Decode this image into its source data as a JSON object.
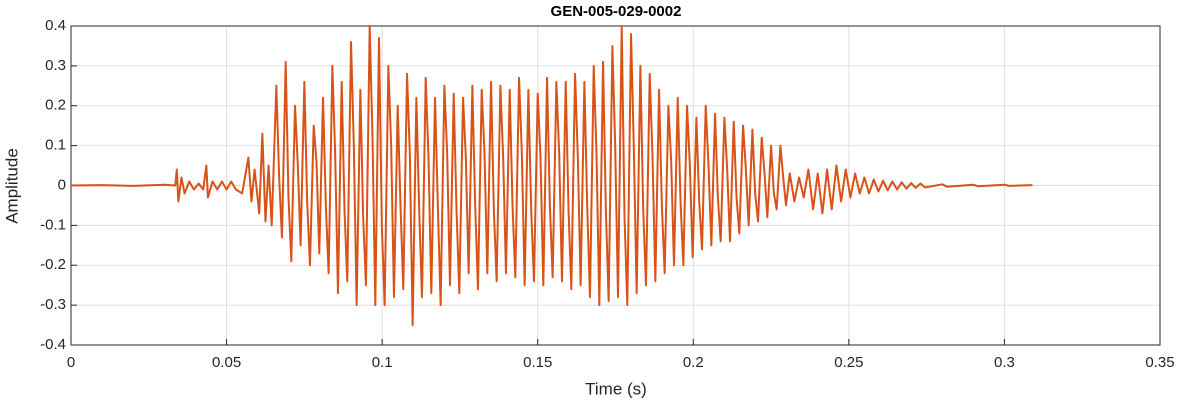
{
  "chart_data": {
    "type": "line",
    "title": "GEN-005-029-0002",
    "x_label": "Time (s)",
    "y_label": "Amplitude",
    "color": "#d95319",
    "grid": true,
    "xlim": [
      0,
      0.35
    ],
    "xticks": [
      0,
      0.05,
      0.1,
      0.15,
      0.2,
      0.25,
      0.3,
      0.35
    ],
    "ylim": [
      -0.4,
      0.4
    ],
    "yticks": [
      -0.4,
      -0.3,
      -0.2,
      -0.1,
      0,
      0.1,
      0.2,
      0.3,
      0.4
    ],
    "x": [
      0,
      0.01,
      0.02,
      0.03,
      0.0335,
      0.034,
      0.0345,
      0.0355,
      0.0365,
      0.038,
      0.0395,
      0.041,
      0.0425,
      0.0435,
      0.044,
      0.0455,
      0.047,
      0.0485,
      0.05,
      0.0515,
      0.053,
      0.055,
      0.057,
      0.058,
      0.059,
      0.0605,
      0.0615,
      0.0625,
      0.0635,
      0.0645,
      0.066,
      0.0669,
      0.0678,
      0.069,
      0.0699,
      0.0708,
      0.072,
      0.0729,
      0.0738,
      0.075,
      0.0759,
      0.0768,
      0.078,
      0.0789,
      0.0798,
      0.081,
      0.0819,
      0.0828,
      0.084,
      0.0849,
      0.0858,
      0.087,
      0.0879,
      0.0888,
      0.09,
      0.0909,
      0.0918,
      0.093,
      0.0939,
      0.0948,
      0.096,
      0.0969,
      0.0978,
      0.099,
      0.0999,
      0.1008,
      0.102,
      0.1029,
      0.1038,
      0.105,
      0.1059,
      0.1068,
      0.108,
      0.1089,
      0.1098,
      0.111,
      0.1119,
      0.1128,
      0.114,
      0.1149,
      0.1158,
      0.117,
      0.1179,
      0.1188,
      0.12,
      0.1209,
      0.1218,
      0.123,
      0.1239,
      0.1248,
      0.126,
      0.1269,
      0.1278,
      0.129,
      0.1299,
      0.1308,
      0.132,
      0.1329,
      0.1338,
      0.135,
      0.1359,
      0.1368,
      0.138,
      0.1389,
      0.1398,
      0.141,
      0.1419,
      0.1428,
      0.144,
      0.1449,
      0.1458,
      0.147,
      0.1479,
      0.1488,
      0.15,
      0.1509,
      0.1518,
      0.153,
      0.1539,
      0.1548,
      0.156,
      0.1569,
      0.1578,
      0.159,
      0.1599,
      0.1608,
      0.162,
      0.1629,
      0.1638,
      0.165,
      0.1659,
      0.1668,
      0.168,
      0.1689,
      0.1698,
      0.171,
      0.1719,
      0.1728,
      0.174,
      0.1749,
      0.1758,
      0.177,
      0.1779,
      0.1788,
      0.18,
      0.1809,
      0.1818,
      0.183,
      0.1839,
      0.1848,
      0.186,
      0.1869,
      0.1878,
      0.189,
      0.1899,
      0.1908,
      0.192,
      0.1929,
      0.1938,
      0.195,
      0.1959,
      0.1968,
      0.198,
      0.1989,
      0.1998,
      0.201,
      0.2019,
      0.2028,
      0.204,
      0.2049,
      0.2058,
      0.207,
      0.2079,
      0.2088,
      0.21,
      0.2109,
      0.2118,
      0.213,
      0.2139,
      0.2148,
      0.216,
      0.2169,
      0.2178,
      0.219,
      0.2199,
      0.2208,
      0.222,
      0.2229,
      0.2238,
      0.225,
      0.2259,
      0.2268,
      0.228,
      0.2289,
      0.2298,
      0.231,
      0.2325,
      0.234,
      0.2355,
      0.237,
      0.2385,
      0.24,
      0.2415,
      0.243,
      0.2445,
      0.246,
      0.2475,
      0.249,
      0.2505,
      0.252,
      0.2535,
      0.255,
      0.2565,
      0.258,
      0.2595,
      0.261,
      0.2625,
      0.264,
      0.2655,
      0.267,
      0.2685,
      0.27,
      0.2715,
      0.273,
      0.2745,
      0.28,
      0.2815,
      0.29,
      0.2915,
      0.3,
      0.3015,
      0.309
    ],
    "values": [
      0,
      0.001,
      -0.001,
      0.002,
      0,
      0.04,
      -0.04,
      0.02,
      -0.02,
      0.01,
      -0.01,
      0.005,
      -0.01,
      0.05,
      -0.03,
      0.01,
      -0.01,
      0.01,
      -0.01,
      0.01,
      -0.01,
      -0.02,
      0.07,
      -0.04,
      0.04,
      -0.07,
      0.13,
      -0.09,
      0.05,
      -0.1,
      0.25,
      0.02,
      -0.13,
      0.31,
      -0.03,
      -0.19,
      0.2,
      0.05,
      -0.15,
      0.26,
      -0.04,
      -0.2,
      0.15,
      0.06,
      -0.17,
      0.22,
      -0.05,
      -0.22,
      0.3,
      0.08,
      -0.27,
      0.26,
      -0.06,
      -0.24,
      0.36,
      0.1,
      -0.3,
      0.24,
      -0.08,
      -0.25,
      0.4,
      0.12,
      -0.3,
      0.37,
      -0.1,
      -0.3,
      0.3,
      0.1,
      -0.28,
      0.2,
      -0.05,
      -0.26,
      0.28,
      0.08,
      -0.35,
      0.22,
      -0.06,
      -0.28,
      0.27,
      0.07,
      -0.27,
      0.22,
      -0.05,
      -0.3,
      0.25,
      0.08,
      -0.25,
      0.23,
      -0.06,
      -0.27,
      0.22,
      0.07,
      -0.22,
      0.25,
      -0.05,
      -0.26,
      0.24,
      0.08,
      -0.22,
      0.26,
      -0.06,
      -0.24,
      0.25,
      0.07,
      -0.22,
      0.24,
      -0.05,
      -0.23,
      0.27,
      0.08,
      -0.25,
      0.24,
      -0.06,
      -0.24,
      0.23,
      0.07,
      -0.25,
      0.27,
      -0.05,
      -0.23,
      0.26,
      0.08,
      -0.24,
      0.26,
      -0.06,
      -0.26,
      0.28,
      0.07,
      -0.25,
      0.26,
      -0.05,
      -0.28,
      0.3,
      0.08,
      -0.3,
      0.31,
      -0.06,
      -0.29,
      0.35,
      0.1,
      -0.28,
      0.4,
      -0.08,
      -0.3,
      0.38,
      0.09,
      -0.27,
      0.3,
      -0.06,
      -0.25,
      0.28,
      0.07,
      -0.24,
      0.24,
      -0.05,
      -0.22,
      0.2,
      0.06,
      -0.2,
      0.22,
      -0.04,
      -0.2,
      0.2,
      0.05,
      -0.18,
      0.17,
      -0.04,
      -0.16,
      0.2,
      0.05,
      -0.15,
      0.18,
      -0.03,
      -0.14,
      0.17,
      0.04,
      -0.14,
      0.16,
      -0.03,
      -0.12,
      0.15,
      0.04,
      -0.1,
      0.14,
      -0.02,
      -0.09,
      0.12,
      0.03,
      -0.08,
      0.1,
      -0.02,
      -0.06,
      0.1,
      0.02,
      -0.05,
      0.03,
      -0.04,
      0.02,
      -0.03,
      0.04,
      -0.06,
      0.03,
      -0.07,
      0.04,
      -0.06,
      0.05,
      -0.04,
      0.04,
      -0.03,
      0.03,
      -0.02,
      0.02,
      -0.02,
      0.015,
      -0.015,
      0.012,
      -0.012,
      0.01,
      -0.01,
      0.008,
      -0.008,
      0.006,
      -0.006,
      0.005,
      -0.005,
      0.003,
      -0.003,
      0.002,
      -0.002,
      0.002,
      -0.001,
      0.001
    ]
  }
}
